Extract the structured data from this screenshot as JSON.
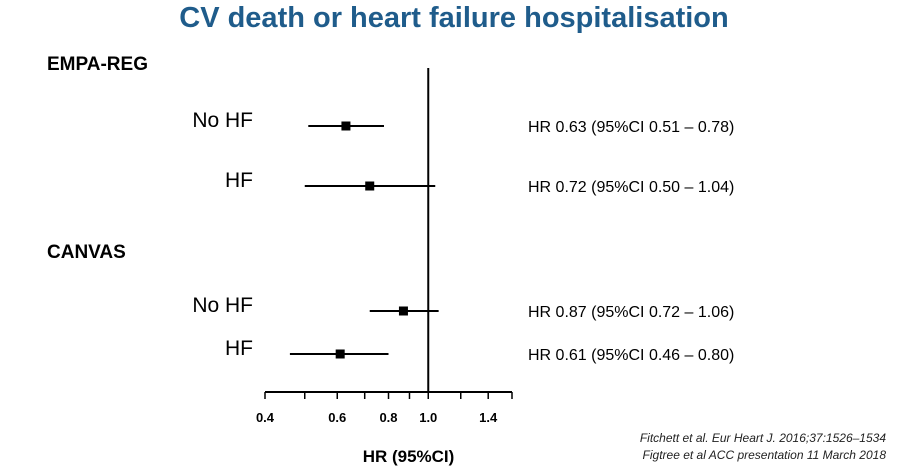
{
  "title": "CV death or heart failure hospitalisation",
  "colors": {
    "title": "#1f5c8b",
    "ink": "#000000"
  },
  "chart_data": {
    "type": "forest",
    "xlabel": "HR (95%CI)",
    "xscale": "log",
    "xlim": [
      0.4,
      1.6
    ],
    "reference_line": 1.0,
    "xticks": [
      {
        "value": 0.4,
        "label": "0.4"
      },
      {
        "value": 0.5,
        "label": ""
      },
      {
        "value": 0.6,
        "label": "0.6"
      },
      {
        "value": 0.7,
        "label": ""
      },
      {
        "value": 0.8,
        "label": "0.8"
      },
      {
        "value": 0.9,
        "label": ""
      },
      {
        "value": 1.0,
        "label": "1.0"
      },
      {
        "value": 1.2,
        "label": ""
      },
      {
        "value": 1.4,
        "label": "1.4"
      },
      {
        "value": 1.6,
        "label": ""
      }
    ],
    "groups": [
      {
        "name": "EMPA-REG",
        "rows": [
          {
            "label": "No HF",
            "hr": 0.63,
            "lo": 0.51,
            "hi": 0.78,
            "text": "HR 0.63 (95%CI 0.51 – 0.78)"
          },
          {
            "label": "HF",
            "hr": 0.72,
            "lo": 0.5,
            "hi": 1.04,
            "text": "HR 0.72 (95%CI 0.50 – 1.04)"
          }
        ]
      },
      {
        "name": "CANVAS",
        "rows": [
          {
            "label": "No HF",
            "hr": 0.87,
            "lo": 0.72,
            "hi": 1.06,
            "text": "HR 0.87 (95%CI 0.72 – 1.06)"
          },
          {
            "label": "HF",
            "hr": 0.61,
            "lo": 0.46,
            "hi": 0.8,
            "text": "HR 0.61 (95%CI 0.46 – 0.80)"
          }
        ]
      }
    ]
  },
  "citations": [
    "Fitchett et al. Eur Heart J. 2016;37:1526–1534",
    "Figtree et al ACC presentation 11 March 2018"
  ]
}
